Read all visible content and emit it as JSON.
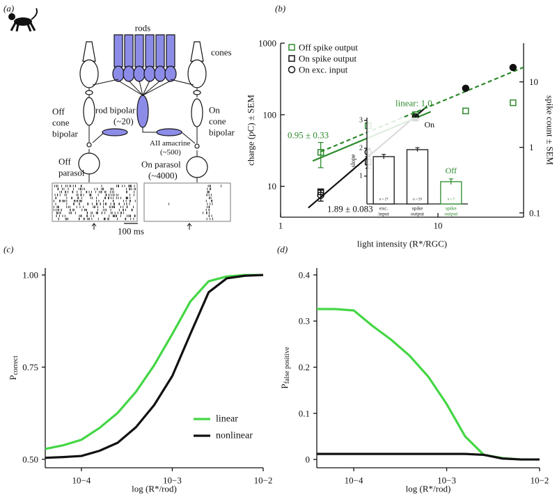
{
  "diagram": {
    "label": "(a)",
    "rods": "rods",
    "cones": "cones",
    "off_cone_bipolar": [
      "Off",
      "cone",
      "bipolar"
    ],
    "rod_bipolar": [
      "rod bipolar",
      "(~20)"
    ],
    "on_cone_bipolar": [
      "On",
      "cone",
      "bipolar"
    ],
    "aii_amacrine": [
      "AII amacrine",
      "(~500)"
    ],
    "off_parasol": [
      "Off",
      "parasol"
    ],
    "on_parasol": [
      "On parasol",
      "(~4000)"
    ],
    "scale_bar": "100 ms"
  },
  "chart_data": [
    {
      "type": "scatter",
      "panel_label": "(b)",
      "xlabel": "light intensity (R*/RGC)",
      "ylabel": "charge (pC) ± SEM",
      "y2label": "spike count ± SEM",
      "xscale": "log",
      "yscale": "log",
      "y2scale": "log",
      "xlim": [
        1,
        35
      ],
      "ylim": [
        3.7,
        1000
      ],
      "y2lim": [
        0.086,
        39
      ],
      "xticks": [
        1,
        10
      ],
      "yticks": [
        10,
        100,
        1000
      ],
      "y2ticks": [
        0.1,
        1,
        10
      ],
      "legend": "upper left",
      "series": [
        {
          "name": "Off spike output",
          "color": "#2a8a2a",
          "marker": "square",
          "axis": "y2",
          "x": [
            1.8,
            3.6,
            7.2,
            15,
            30
          ],
          "values": [
            0.84,
            2.14,
            3.16,
            3.6,
            4.8
          ],
          "errors": [
            0.35,
            0.2,
            0.1,
            null,
            null
          ]
        },
        {
          "name": "On spike output",
          "color": "#111111",
          "marker": "square",
          "axis": "y2",
          "x": [
            1.8,
            3.6,
            7.2
          ],
          "values": [
            0.21,
            0.6,
            2.8
          ],
          "errors": [
            0.02,
            0.12,
            0.15
          ]
        },
        {
          "name": "On exc. input",
          "color": "#111111",
          "marker": "circle",
          "x": [
            1.8,
            3.6,
            7.2,
            15,
            30
          ],
          "values": [
            7.5,
            30,
            93,
            234,
            457
          ],
          "errors": [
            1.3,
            4,
            5,
            null,
            null
          ],
          "filled": [
            false,
            false,
            false,
            true,
            true
          ]
        }
      ],
      "fit_lines": [
        {
          "color": "#111111",
          "style": "solid",
          "x": [
            1.5,
            8.5
          ],
          "values": [
            5,
            130
          ]
        },
        {
          "color": "#2a8a2a",
          "style": "solid",
          "axis": "y2",
          "x": [
            1.6,
            9
          ],
          "values": [
            0.62,
            3.5
          ]
        },
        {
          "color": "#2a8a2a",
          "style": "dashed",
          "axis": "y2",
          "x": [
            1.8,
            35
          ],
          "values": [
            0.86,
            16.7
          ]
        }
      ],
      "annotations": [
        {
          "text": "linear: 1.0",
          "color": "#2a8a2a"
        },
        {
          "text": "0.95 ± 0.33",
          "color": "#2a8a2a"
        },
        {
          "text": "1.89 ± 0.083",
          "color": "#111111"
        }
      ]
    },
    {
      "type": "bar",
      "ylabel": "slope",
      "categories": [
        [
          "exc.",
          "input"
        ],
        [
          "spike",
          "output"
        ],
        [
          "spike",
          "output"
        ]
      ],
      "values": [
        1.7,
        1.95,
        0.8
      ],
      "errors": [
        0.08,
        0.07,
        0.1
      ],
      "colors": [
        "#111111",
        "#111111",
        "#2a8a2a"
      ],
      "n_labels": [
        "n = 27",
        "n = 59",
        "n = 7"
      ],
      "group_labels": [
        "On",
        "Off"
      ],
      "ylim": [
        0,
        3.1
      ],
      "yticks": [
        1,
        2,
        3
      ]
    },
    {
      "type": "line",
      "panel_label": "(c)",
      "xlabel": "log (R*/rod)",
      "ylabel": "P",
      "ylabel_sub": "correct",
      "xscale": "log",
      "xlim": [
        4e-05,
        0.01
      ],
      "ylim": [
        0.477,
        1.019
      ],
      "xticks": [
        {
          "value": 0.0001,
          "label": "10−4"
        },
        {
          "value": 0.001,
          "label": "10−3"
        },
        {
          "value": 0.01,
          "label": "10−2"
        }
      ],
      "yticks": [
        {
          "value": 0.5,
          "label": "0.50"
        },
        {
          "value": 0.75,
          "label": "0.75"
        },
        {
          "value": 1,
          "label": "1.00"
        }
      ],
      "legend": "lower right",
      "x": [
        4e-05,
        6.31e-05,
        0.0001,
        0.000158,
        0.000251,
        0.000398,
        0.000631,
        0.001,
        0.00158,
        0.00251,
        0.00398,
        0.00631,
        0.01
      ],
      "series": [
        {
          "name": "linear",
          "color": "#44d644",
          "values": [
            0.528,
            0.538,
            0.553,
            0.585,
            0.626,
            0.683,
            0.755,
            0.84,
            0.928,
            0.983,
            0.996,
            1.0,
            1.0
          ]
        },
        {
          "name": "nonlinear",
          "color": "#111111",
          "values": [
            0.504,
            0.506,
            0.509,
            0.523,
            0.545,
            0.587,
            0.647,
            0.726,
            0.84,
            0.953,
            0.991,
            0.998,
            1.0
          ]
        }
      ]
    },
    {
      "type": "line",
      "panel_label": "(d)",
      "xlabel": "log (R*/rod)",
      "ylabel": "P",
      "ylabel_sub": "false positive",
      "xscale": "log",
      "xlim": [
        4e-05,
        0.01
      ],
      "ylim": [
        -0.018,
        0.415
      ],
      "xticks": [
        {
          "value": 0.0001,
          "label": "10−4"
        },
        {
          "value": 0.001,
          "label": "10−3"
        },
        {
          "value": 0.01,
          "label": "10−2"
        }
      ],
      "yticks": [
        0,
        0.1,
        0.2,
        0.3,
        0.4
      ],
      "x": [
        4e-05,
        6.31e-05,
        0.0001,
        0.000158,
        0.000251,
        0.000398,
        0.000631,
        0.001,
        0.00158,
        0.00251,
        0.00398,
        0.00631,
        0.01
      ],
      "series": [
        {
          "name": "linear",
          "color": "#44d644",
          "values": [
            0.326,
            0.326,
            0.323,
            0.29,
            0.26,
            0.225,
            0.18,
            0.12,
            0.05,
            0.01,
            0.003,
            0.0,
            0.0
          ]
        },
        {
          "name": "nonlinear",
          "color": "#111111",
          "values": [
            0.012,
            0.012,
            0.012,
            0.012,
            0.012,
            0.012,
            0.012,
            0.012,
            0.012,
            0.01,
            0.002,
            0.0,
            0.0
          ]
        }
      ]
    }
  ]
}
